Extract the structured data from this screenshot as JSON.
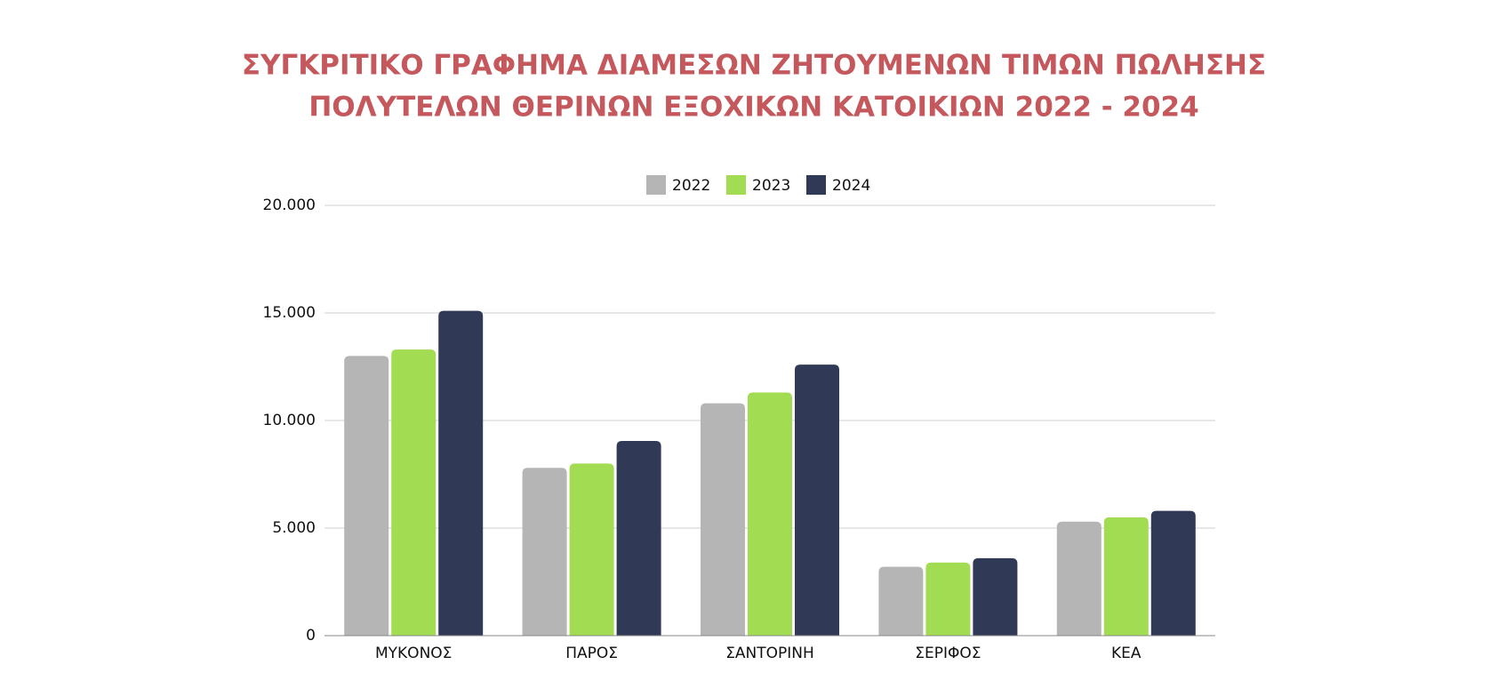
{
  "chart_data": {
    "type": "bar",
    "title": [
      "ΣΥΓΚΡΙΤΙΚΟ ΓΡΑΦΗΜΑ ΔΙΑΜΕΣΩΝ ΖΗΤΟΥΜΕΝΩΝ ΤΙΜΩΝ ΠΩΛΗΣΗΣ",
      "ΠΟΛΥΤΕΛΩΝ ΘΕΡΙΝΩΝ ΕΞΟΧΙΚΩΝ ΚΑΤΟΙΚΙΩΝ 2022 - 2024"
    ],
    "categories": [
      "ΜΥΚΟΝΟΣ",
      "ΠΑΡΟΣ",
      "ΣΑΝΤΟΡΙΝΗ",
      "ΣΕΡΙΦΟΣ",
      "ΚΕΑ"
    ],
    "series": [
      {
        "name": "2022",
        "color": "#b5b5b5",
        "values": [
          13000,
          7800,
          10800,
          3200,
          5300
        ]
      },
      {
        "name": "2023",
        "color": "#a2dc52",
        "values": [
          13300,
          8000,
          11300,
          3400,
          5500
        ]
      },
      {
        "name": "2024",
        "color": "#303a56",
        "values": [
          15100,
          9050,
          12600,
          3600,
          5800
        ]
      }
    ],
    "ylim": [
      0,
      20000
    ],
    "yticks": [
      0,
      {
        "value": 5000,
        "label": "5.000"
      },
      {
        "value": 10000,
        "label": "10.000"
      },
      {
        "value": 15000,
        "label": "15.000"
      },
      {
        "value": 20000,
        "label": "20.000"
      }
    ],
    "grid": true,
    "legend": "top"
  }
}
